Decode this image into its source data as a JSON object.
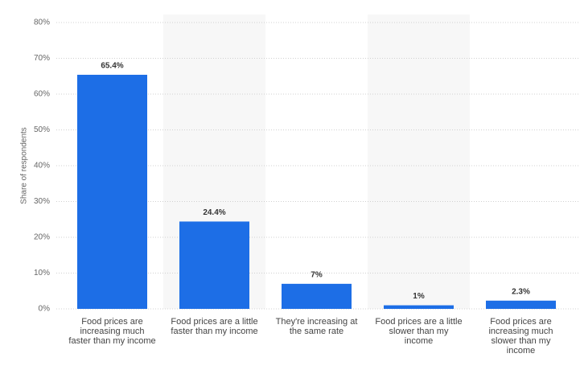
{
  "chart_data": {
    "type": "bar",
    "y_axis_label": "Share of respondents",
    "categories": [
      "Food prices are increasing much faster than my income",
      "Food prices are a little faster than my income",
      "They're increasing at the same rate",
      "Food prices are a little slower than my income",
      "Food prices are increasing much slower than my income"
    ],
    "values": [
      65.4,
      24.4,
      7,
      1,
      2.3
    ],
    "value_labels": [
      "65.4%",
      "24.4%",
      "7%",
      "1%",
      "2.3%"
    ],
    "color": "#1d6ee6",
    "ylim": [
      0,
      80
    ],
    "yticks": [
      {
        "value": 0,
        "label": "0%"
      },
      {
        "value": 10,
        "label": "10%"
      },
      {
        "value": 20,
        "label": "20%"
      },
      {
        "value": 30,
        "label": "30%"
      },
      {
        "value": 40,
        "label": "40%"
      },
      {
        "value": 50,
        "label": "50%"
      },
      {
        "value": 60,
        "label": "60%"
      },
      {
        "value": 70,
        "label": "70%"
      },
      {
        "value": 80,
        "label": "80%"
      }
    ],
    "grid": true
  }
}
